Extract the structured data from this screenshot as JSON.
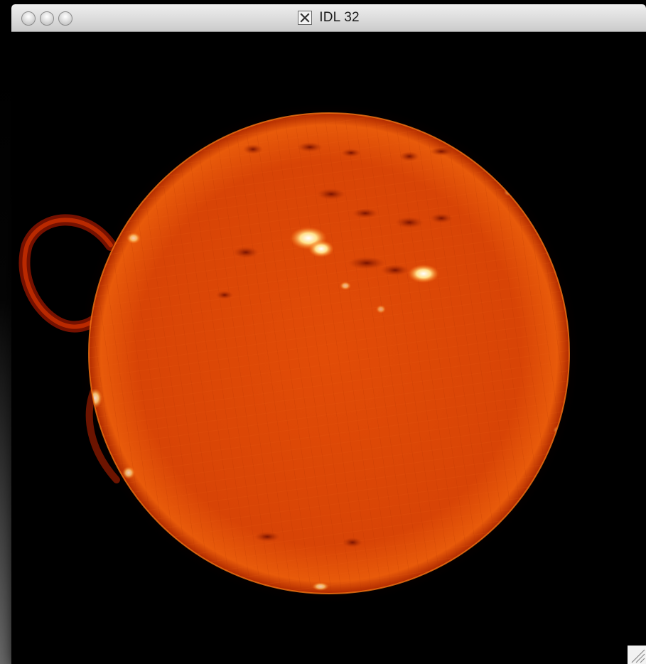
{
  "window": {
    "title": "IDL 32",
    "title_icon": "x11-icon",
    "buttons": [
      "close",
      "minimize",
      "zoom"
    ]
  },
  "image": {
    "subject": "solar-disk",
    "colormap": [
      "#000000",
      "#5a0000",
      "#c83000",
      "#ff6a00",
      "#ffd060",
      "#ffffff"
    ]
  },
  "resize_grip_icon": "resize-grip-icon"
}
